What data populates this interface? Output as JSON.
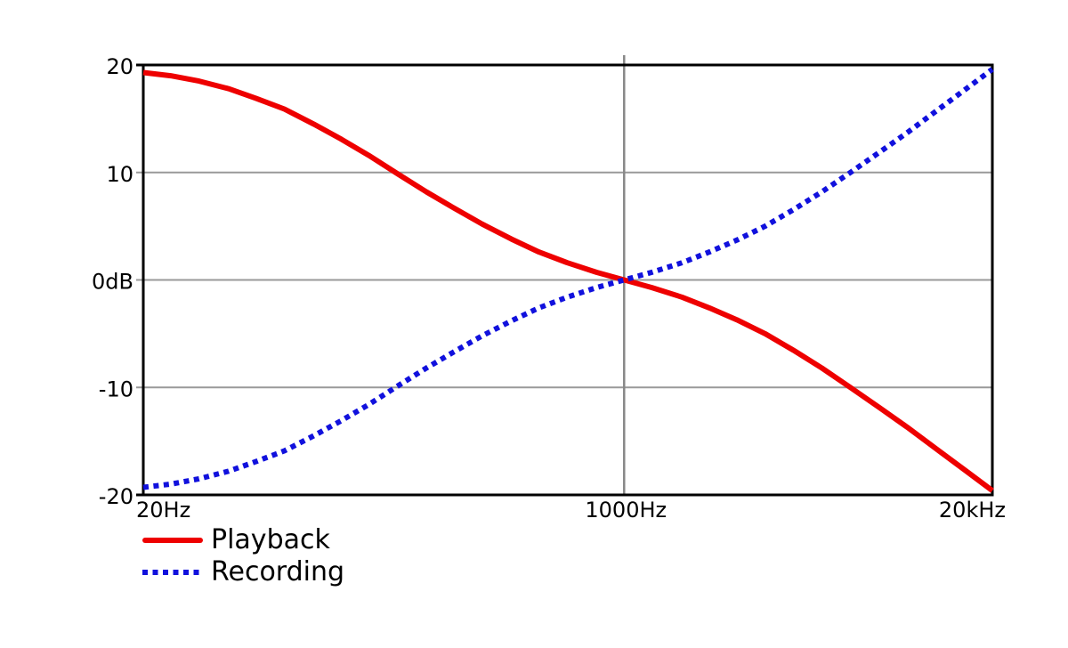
{
  "figure": {
    "background": "#ffffff",
    "border_color": "#000000",
    "grid_color_horizontal": "#999999",
    "grid_color_vertical": "#888888",
    "text_color": "#000000"
  },
  "chart_data": {
    "type": "line",
    "title": "",
    "x_scale": "log",
    "xlim": [
      20,
      20000
    ],
    "ylim": [
      -20,
      20
    ],
    "grid": true,
    "legend_position": "bottom-left",
    "x_ticks": [
      {
        "value": 20,
        "label": "20Hz"
      },
      {
        "value": 1000,
        "label": "1000Hz"
      },
      {
        "value": 20000,
        "label": "20kHz"
      }
    ],
    "y_ticks": [
      {
        "value": 20,
        "label": "20"
      },
      {
        "value": 10,
        "label": "10"
      },
      {
        "value": 0,
        "label": "0dB"
      },
      {
        "value": -10,
        "label": "-10"
      },
      {
        "value": -20,
        "label": "-20"
      }
    ],
    "x_gridlines": [
      1000
    ],
    "y_gridlines": [
      10,
      0,
      -10
    ],
    "frequencies_hz": [
      20,
      25,
      31.5,
      40,
      50,
      63,
      80,
      100,
      125,
      160,
      200,
      250,
      315,
      400,
      500,
      630,
      800,
      1000,
      1250,
      1600,
      2000,
      2500,
      3150,
      4000,
      5000,
      6300,
      8000,
      10000,
      12500,
      16000,
      20000
    ],
    "series": [
      {
        "name": "Playback",
        "color": "#ee0000",
        "line_style": "solid",
        "values": [
          19.3,
          19.0,
          18.5,
          17.8,
          16.9,
          15.9,
          14.5,
          13.1,
          11.6,
          9.8,
          8.2,
          6.7,
          5.2,
          3.8,
          2.6,
          1.6,
          0.7,
          0.0,
          -0.7,
          -1.6,
          -2.6,
          -3.7,
          -5.0,
          -6.6,
          -8.2,
          -10.0,
          -11.9,
          -13.7,
          -15.6,
          -17.7,
          -19.6
        ]
      },
      {
        "name": "Recording",
        "color": "#1111dd",
        "line_style": "dotted",
        "values": [
          -19.3,
          -19.0,
          -18.5,
          -17.8,
          -16.9,
          -15.9,
          -14.5,
          -13.1,
          -11.6,
          -9.8,
          -8.2,
          -6.7,
          -5.2,
          -3.8,
          -2.6,
          -1.6,
          -0.7,
          0.0,
          0.7,
          1.6,
          2.6,
          3.7,
          5.0,
          6.6,
          8.2,
          10.0,
          11.9,
          13.7,
          15.6,
          17.7,
          19.6
        ]
      }
    ]
  }
}
